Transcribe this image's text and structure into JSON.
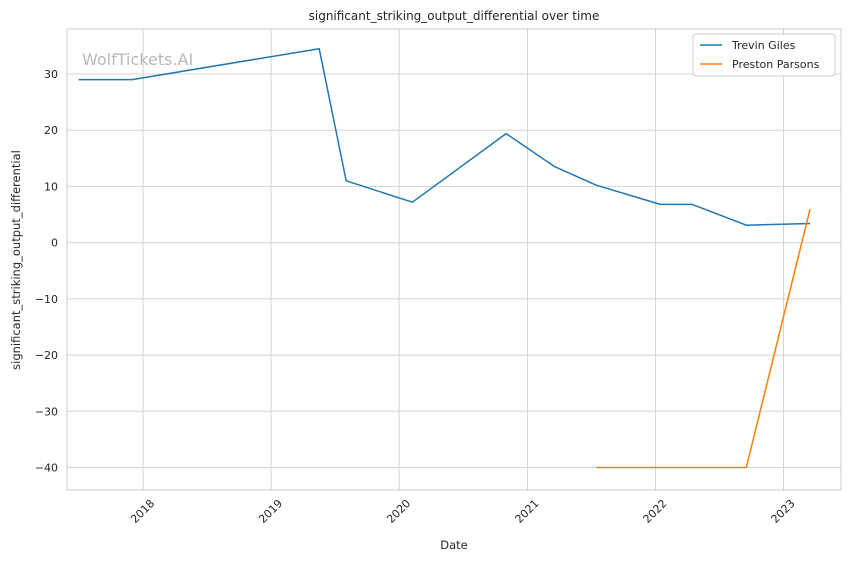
{
  "chart_data": {
    "type": "line",
    "title": "significant_striking_output_differential over time",
    "xlabel": "Date",
    "ylabel": "significant_striking_output_differential",
    "watermark": "WolfTickets.AI",
    "x_ticks": [
      "2018",
      "2019",
      "2020",
      "2021",
      "2022",
      "2023"
    ],
    "y_ticks": [
      30,
      20,
      10,
      0,
      -10,
      -20,
      -30,
      -40
    ],
    "y_tick_labels": [
      "30",
      "20",
      "10",
      "0",
      "−10",
      "−20",
      "−30",
      "−40"
    ],
    "ylim": [
      -44,
      38
    ],
    "xlim": [
      "2017-05-29",
      "2023-06-14"
    ],
    "grid": true,
    "legend_position": "top-right",
    "series": [
      {
        "name": "Trevin Giles",
        "color": "#1f77b4",
        "x": [
          "2017-07-01",
          "2017-12-01",
          "2019-05-18",
          "2019-08-03",
          "2020-02-08",
          "2020-11-01",
          "2021-03-20",
          "2021-07-17",
          "2022-01-15",
          "2022-04-16",
          "2022-09-17",
          "2023-03-18"
        ],
        "y": [
          29.0,
          29.0,
          34.5,
          11.0,
          7.2,
          19.4,
          13.5,
          10.2,
          6.8,
          6.8,
          3.1,
          3.4
        ]
      },
      {
        "name": "Preston Parsons",
        "color": "#ff7f0e",
        "x": [
          "2021-07-17",
          "2022-09-17",
          "2023-03-18"
        ],
        "y": [
          -40.0,
          -40.0,
          6.0
        ]
      }
    ]
  }
}
